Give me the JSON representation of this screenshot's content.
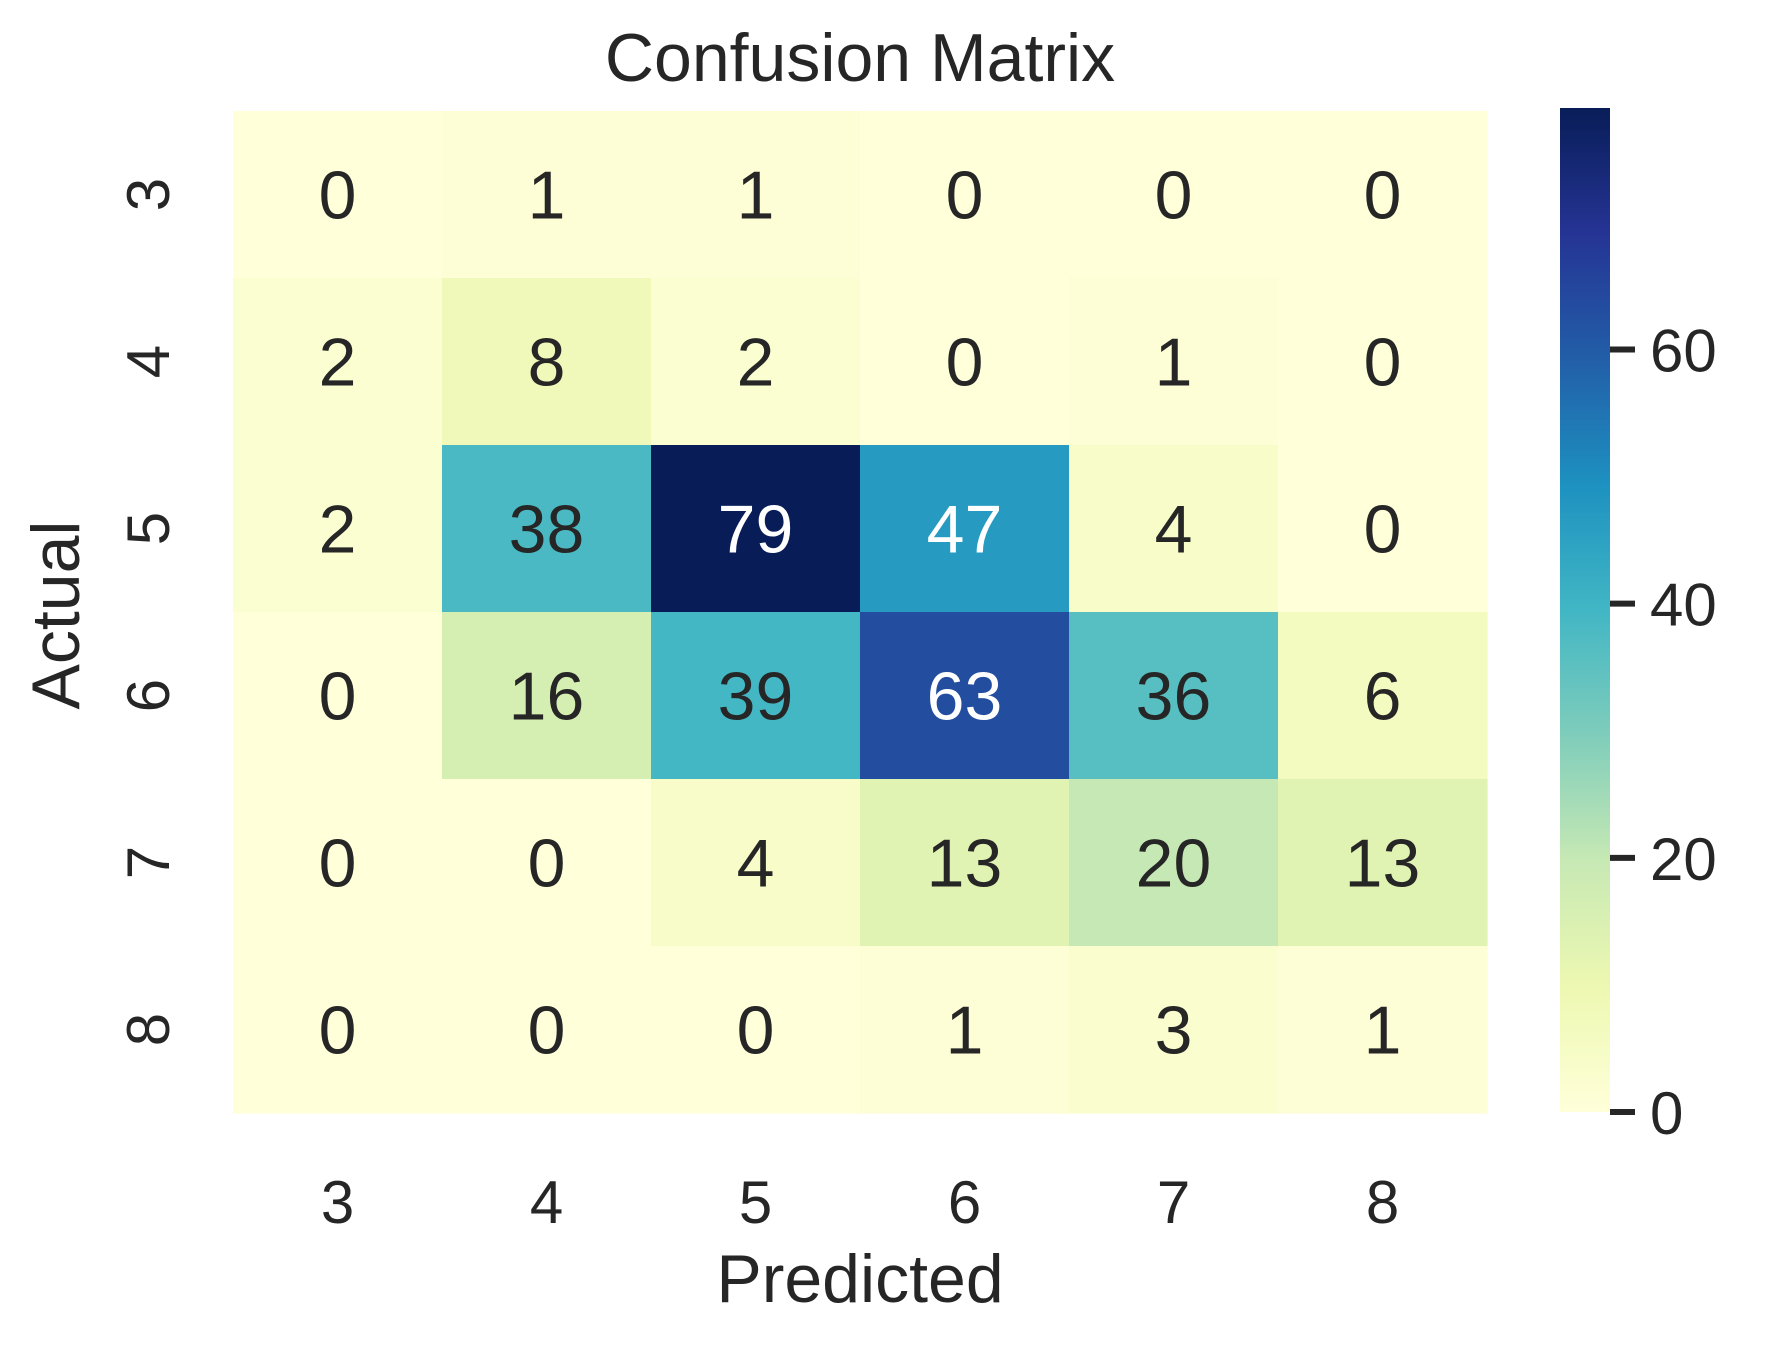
{
  "chart_data": {
    "type": "heatmap",
    "title": "Confusion Matrix",
    "xlabel": "Predicted",
    "ylabel": "Actual",
    "x_categories": [
      "3",
      "4",
      "5",
      "6",
      "7",
      "8"
    ],
    "y_categories": [
      "3",
      "4",
      "5",
      "6",
      "7",
      "8"
    ],
    "values": [
      [
        0,
        1,
        1,
        0,
        0,
        0
      ],
      [
        2,
        8,
        2,
        0,
        1,
        0
      ],
      [
        2,
        38,
        79,
        47,
        4,
        0
      ],
      [
        0,
        16,
        39,
        63,
        36,
        6
      ],
      [
        0,
        0,
        4,
        13,
        20,
        13
      ],
      [
        0,
        0,
        0,
        1,
        3,
        1
      ]
    ],
    "colormap": "YlGnBu",
    "colorbar": {
      "range": [
        0,
        79
      ],
      "ticks": [
        0,
        20,
        40,
        60
      ],
      "tick_labels": [
        "0",
        "20",
        "40",
        "60"
      ]
    },
    "annotations": true,
    "grid": false,
    "colormap_stops": [
      "#ffffd9",
      "#edf8b1",
      "#c7e9b4",
      "#7fcdbb",
      "#41b6c4",
      "#1d91c0",
      "#225ea8",
      "#253494",
      "#081d58"
    ]
  }
}
